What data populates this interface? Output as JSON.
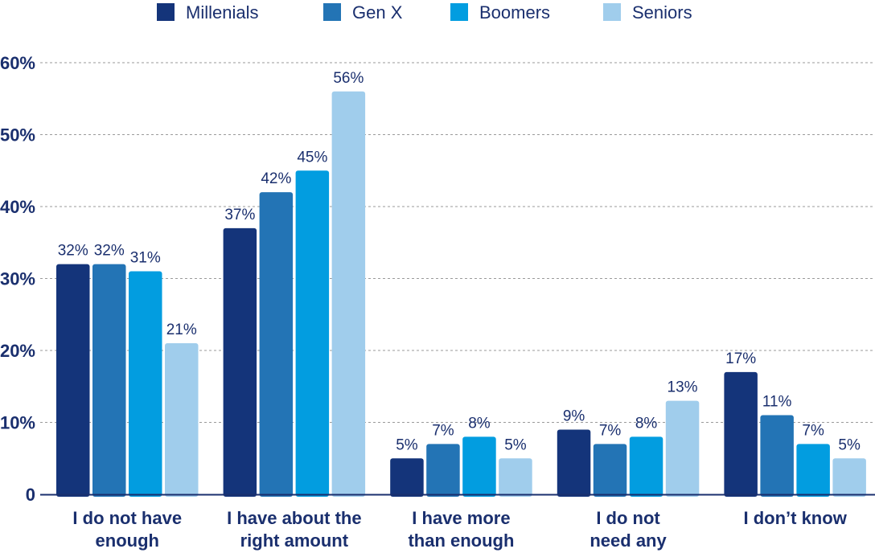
{
  "chart_data": {
    "type": "bar",
    "categories": [
      [
        "I do not have",
        "enough"
      ],
      [
        "I have about the",
        "right amount"
      ],
      [
        "I have more",
        "than enough"
      ],
      [
        "I do not",
        "need any"
      ],
      [
        "I don’t know"
      ]
    ],
    "series": [
      {
        "name": "Millenials",
        "color": "#14347a",
        "values": [
          32,
          37,
          5,
          9,
          17
        ]
      },
      {
        "name": "Gen X",
        "color": "#2374b5",
        "values": [
          32,
          42,
          7,
          7,
          11
        ]
      },
      {
        "name": "Boomers",
        "color": "#029de0",
        "values": [
          31,
          45,
          8,
          8,
          7
        ]
      },
      {
        "name": "Seniors",
        "color": "#a0cdec",
        "values": [
          21,
          56,
          5,
          13,
          5
        ]
      }
    ],
    "ylim": [
      0,
      60
    ],
    "yticks": [
      0,
      10,
      20,
      30,
      40,
      50,
      60
    ],
    "ytick_labels": [
      "0",
      "10%",
      "20%",
      "30%",
      "40%",
      "50%",
      "60%"
    ],
    "data_label_suffix": "%",
    "grid": true,
    "legend_position": "top"
  }
}
